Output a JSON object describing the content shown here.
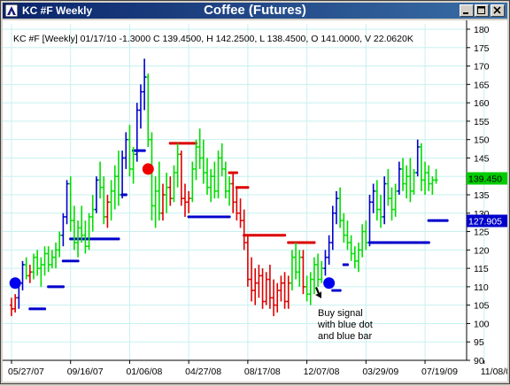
{
  "window": {
    "title": "KC #F Weekly",
    "chart_title": "Coffee (Futures)",
    "buttons": {
      "minimize": "_",
      "maximize": "□",
      "close": "×"
    }
  },
  "info_line": "KC #F [Weekly] 01/17/10  -1.3000 C 139.4500, H 142.2500, L 138.4500, O 141.0000, V 22.0620K",
  "annotation": [
    "Buy signal",
    "with blue dot",
    "and blue bar"
  ],
  "colors": {
    "up_bar": "#00dd00",
    "down_bar": "#dd0000",
    "signal_bar": "#0000cc",
    "grid": "#c8f0f0",
    "last_price_bg": "#00cc00",
    "stop_bg": "#0000cc"
  },
  "chart_data": {
    "type": "ohlc",
    "ylim": [
      90,
      180
    ],
    "y_ticks": [
      90,
      95,
      100,
      105,
      110,
      115,
      120,
      125,
      130,
      135,
      140,
      145,
      150,
      155,
      160,
      165,
      170,
      175,
      180
    ],
    "x_tick_labels": [
      "05/27/07",
      "09/16/07",
      "01/06/08",
      "04/27/08",
      "08/17/08",
      "12/07/08",
      "03/29/09",
      "07/19/09",
      "11/08/09"
    ],
    "x_tick_weeks": [
      0,
      16,
      32,
      48,
      64,
      80,
      96,
      112,
      128
    ],
    "last_price_label": "139.450",
    "last_price": 139.45,
    "stop_label": "127.905",
    "stop_price": 127.905,
    "bars": [
      {
        "w": 0,
        "o": 105,
        "h": 107,
        "l": 102,
        "c": 104,
        "col": "r"
      },
      {
        "w": 1,
        "o": 104,
        "h": 108,
        "l": 103,
        "c": 107,
        "col": "r"
      },
      {
        "w": 2,
        "o": 107,
        "h": 112,
        "l": 104,
        "c": 111,
        "col": "b"
      },
      {
        "w": 3,
        "o": 111,
        "h": 117,
        "l": 109,
        "c": 116,
        "col": "b"
      },
      {
        "w": 4,
        "o": 116,
        "h": 118,
        "l": 112,
        "c": 113,
        "col": "g"
      },
      {
        "w": 5,
        "o": 113,
        "h": 116,
        "l": 111,
        "c": 114,
        "col": "r"
      },
      {
        "w": 6,
        "o": 114,
        "h": 119,
        "l": 112,
        "c": 118,
        "col": "g"
      },
      {
        "w": 7,
        "o": 118,
        "h": 120,
        "l": 113,
        "c": 115,
        "col": "g"
      },
      {
        "w": 8,
        "o": 115,
        "h": 118,
        "l": 110,
        "c": 116,
        "col": "g"
      },
      {
        "w": 9,
        "o": 116,
        "h": 121,
        "l": 113,
        "c": 119,
        "col": "g"
      },
      {
        "w": 10,
        "o": 119,
        "h": 121,
        "l": 114,
        "c": 116,
        "col": "g"
      },
      {
        "w": 11,
        "o": 116,
        "h": 120,
        "l": 115,
        "c": 118,
        "col": "g"
      },
      {
        "w": 12,
        "o": 118,
        "h": 122,
        "l": 115,
        "c": 120,
        "col": "g"
      },
      {
        "w": 13,
        "o": 120,
        "h": 125,
        "l": 118,
        "c": 124,
        "col": "g"
      },
      {
        "w": 14,
        "o": 124,
        "h": 130,
        "l": 121,
        "c": 129,
        "col": "b"
      },
      {
        "w": 15,
        "o": 129,
        "h": 139,
        "l": 127,
        "c": 138,
        "col": "b"
      },
      {
        "w": 16,
        "o": 138,
        "h": 140,
        "l": 125,
        "c": 128,
        "col": "g"
      },
      {
        "w": 17,
        "o": 128,
        "h": 132,
        "l": 120,
        "c": 122,
        "col": "g"
      },
      {
        "w": 18,
        "o": 122,
        "h": 128,
        "l": 118,
        "c": 126,
        "col": "g"
      },
      {
        "w": 19,
        "o": 126,
        "h": 132,
        "l": 122,
        "c": 124,
        "col": "g"
      },
      {
        "w": 20,
        "o": 124,
        "h": 128,
        "l": 119,
        "c": 121,
        "col": "g"
      },
      {
        "w": 21,
        "o": 121,
        "h": 130,
        "l": 120,
        "c": 129,
        "col": "g"
      },
      {
        "w": 22,
        "o": 129,
        "h": 135,
        "l": 125,
        "c": 131,
        "col": "g"
      },
      {
        "w": 23,
        "o": 131,
        "h": 140,
        "l": 130,
        "c": 139,
        "col": "b"
      },
      {
        "w": 24,
        "o": 139,
        "h": 144,
        "l": 134,
        "c": 137,
        "col": "g"
      },
      {
        "w": 25,
        "o": 137,
        "h": 140,
        "l": 127,
        "c": 129,
        "col": "g"
      },
      {
        "w": 26,
        "o": 129,
        "h": 135,
        "l": 126,
        "c": 133,
        "col": "r"
      },
      {
        "w": 27,
        "o": 133,
        "h": 139,
        "l": 128,
        "c": 136,
        "col": "g"
      },
      {
        "w": 28,
        "o": 136,
        "h": 143,
        "l": 131,
        "c": 140,
        "col": "g"
      },
      {
        "w": 29,
        "o": 140,
        "h": 147,
        "l": 132,
        "c": 135,
        "col": "g"
      },
      {
        "w": 30,
        "o": 135,
        "h": 147,
        "l": 134,
        "c": 145,
        "col": "b"
      },
      {
        "w": 31,
        "o": 145,
        "h": 152,
        "l": 142,
        "c": 150,
        "col": "b"
      },
      {
        "w": 32,
        "o": 150,
        "h": 154,
        "l": 140,
        "c": 142,
        "col": "g"
      },
      {
        "w": 33,
        "o": 142,
        "h": 148,
        "l": 138,
        "c": 146,
        "col": "g"
      },
      {
        "w": 34,
        "o": 146,
        "h": 160,
        "l": 144,
        "c": 158,
        "col": "b"
      },
      {
        "w": 35,
        "o": 158,
        "h": 165,
        "l": 153,
        "c": 163,
        "col": "b"
      },
      {
        "w": 36,
        "o": 163,
        "h": 172,
        "l": 158,
        "c": 167,
        "col": "b"
      },
      {
        "w": 37,
        "o": 167,
        "h": 168,
        "l": 148,
        "c": 150,
        "col": "g"
      },
      {
        "w": 38,
        "o": 150,
        "h": 152,
        "l": 128,
        "c": 132,
        "col": "g"
      },
      {
        "w": 39,
        "o": 132,
        "h": 140,
        "l": 126,
        "c": 136,
        "col": "g"
      },
      {
        "w": 40,
        "o": 136,
        "h": 144,
        "l": 128,
        "c": 130,
        "col": "g"
      },
      {
        "w": 41,
        "o": 130,
        "h": 138,
        "l": 128,
        "c": 135,
        "col": "r"
      },
      {
        "w": 42,
        "o": 135,
        "h": 141,
        "l": 130,
        "c": 137,
        "col": "g"
      },
      {
        "w": 43,
        "o": 137,
        "h": 140,
        "l": 132,
        "c": 134,
        "col": "r"
      },
      {
        "w": 44,
        "o": 134,
        "h": 143,
        "l": 133,
        "c": 141,
        "col": "g"
      },
      {
        "w": 45,
        "o": 141,
        "h": 149,
        "l": 137,
        "c": 146,
        "col": "g"
      },
      {
        "w": 46,
        "o": 146,
        "h": 147,
        "l": 132,
        "c": 134,
        "col": "r"
      },
      {
        "w": 47,
        "o": 134,
        "h": 138,
        "l": 129,
        "c": 133,
        "col": "r"
      },
      {
        "w": 48,
        "o": 133,
        "h": 136,
        "l": 130,
        "c": 134,
        "col": "r"
      },
      {
        "w": 49,
        "o": 134,
        "h": 144,
        "l": 133,
        "c": 142,
        "col": "g"
      },
      {
        "w": 50,
        "o": 142,
        "h": 150,
        "l": 139,
        "c": 148,
        "col": "g"
      },
      {
        "w": 51,
        "o": 148,
        "h": 153,
        "l": 142,
        "c": 145,
        "col": "g"
      },
      {
        "w": 52,
        "o": 145,
        "h": 150,
        "l": 138,
        "c": 141,
        "col": "g"
      },
      {
        "w": 53,
        "o": 141,
        "h": 145,
        "l": 135,
        "c": 137,
        "col": "g"
      },
      {
        "w": 54,
        "o": 137,
        "h": 142,
        "l": 133,
        "c": 140,
        "col": "g"
      },
      {
        "w": 55,
        "o": 140,
        "h": 144,
        "l": 134,
        "c": 136,
        "col": "g"
      },
      {
        "w": 56,
        "o": 136,
        "h": 147,
        "l": 134,
        "c": 145,
        "col": "g"
      },
      {
        "w": 57,
        "o": 145,
        "h": 149,
        "l": 140,
        "c": 142,
        "col": "g"
      },
      {
        "w": 58,
        "o": 142,
        "h": 144,
        "l": 134,
        "c": 136,
        "col": "g"
      },
      {
        "w": 59,
        "o": 136,
        "h": 140,
        "l": 132,
        "c": 138,
        "col": "g"
      },
      {
        "w": 60,
        "o": 138,
        "h": 141,
        "l": 130,
        "c": 133,
        "col": "r"
      },
      {
        "w": 61,
        "o": 133,
        "h": 137,
        "l": 128,
        "c": 130,
        "col": "r"
      },
      {
        "w": 62,
        "o": 130,
        "h": 134,
        "l": 126,
        "c": 128,
        "col": "r"
      },
      {
        "w": 63,
        "o": 128,
        "h": 131,
        "l": 120,
        "c": 122,
        "col": "r"
      },
      {
        "w": 64,
        "o": 122,
        "h": 124,
        "l": 110,
        "c": 112,
        "col": "r"
      },
      {
        "w": 65,
        "o": 112,
        "h": 118,
        "l": 106,
        "c": 109,
        "col": "r"
      },
      {
        "w": 66,
        "o": 109,
        "h": 115,
        "l": 105,
        "c": 111,
        "col": "r"
      },
      {
        "w": 67,
        "o": 111,
        "h": 116,
        "l": 107,
        "c": 113,
        "col": "r"
      },
      {
        "w": 68,
        "o": 113,
        "h": 115,
        "l": 104,
        "c": 106,
        "col": "r"
      },
      {
        "w": 69,
        "o": 106,
        "h": 114,
        "l": 105,
        "c": 112,
        "col": "r"
      },
      {
        "w": 70,
        "o": 112,
        "h": 116,
        "l": 104,
        "c": 107,
        "col": "r"
      },
      {
        "w": 71,
        "o": 107,
        "h": 112,
        "l": 102,
        "c": 105,
        "col": "r"
      },
      {
        "w": 72,
        "o": 105,
        "h": 111,
        "l": 103,
        "c": 109,
        "col": "r"
      },
      {
        "w": 73,
        "o": 109,
        "h": 113,
        "l": 106,
        "c": 111,
        "col": "r"
      },
      {
        "w": 74,
        "o": 111,
        "h": 114,
        "l": 104,
        "c": 106,
        "col": "r"
      },
      {
        "w": 75,
        "o": 106,
        "h": 113,
        "l": 104,
        "c": 111,
        "col": "r"
      },
      {
        "w": 76,
        "o": 111,
        "h": 120,
        "l": 109,
        "c": 118,
        "col": "g"
      },
      {
        "w": 77,
        "o": 118,
        "h": 122,
        "l": 112,
        "c": 114,
        "col": "g"
      },
      {
        "w": 78,
        "o": 114,
        "h": 120,
        "l": 110,
        "c": 118,
        "col": "g"
      },
      {
        "w": 79,
        "o": 118,
        "h": 120,
        "l": 108,
        "c": 110,
        "col": "r"
      },
      {
        "w": 80,
        "o": 110,
        "h": 113,
        "l": 106,
        "c": 108,
        "col": "g"
      },
      {
        "w": 81,
        "o": 108,
        "h": 114,
        "l": 105,
        "c": 112,
        "col": "g"
      },
      {
        "w": 82,
        "o": 112,
        "h": 118,
        "l": 108,
        "c": 116,
        "col": "g"
      },
      {
        "w": 83,
        "o": 116,
        "h": 119,
        "l": 110,
        "c": 112,
        "col": "g"
      },
      {
        "w": 84,
        "o": 112,
        "h": 117,
        "l": 111,
        "c": 115,
        "col": "g"
      },
      {
        "w": 85,
        "o": 115,
        "h": 120,
        "l": 113,
        "c": 118,
        "col": "b"
      },
      {
        "w": 86,
        "o": 118,
        "h": 124,
        "l": 116,
        "c": 122,
        "col": "b"
      },
      {
        "w": 87,
        "o": 122,
        "h": 132,
        "l": 120,
        "c": 130,
        "col": "b"
      },
      {
        "w": 88,
        "o": 130,
        "h": 136,
        "l": 127,
        "c": 134,
        "col": "b"
      },
      {
        "w": 89,
        "o": 134,
        "h": 137,
        "l": 126,
        "c": 128,
        "col": "g"
      },
      {
        "w": 90,
        "o": 128,
        "h": 130,
        "l": 122,
        "c": 124,
        "col": "g"
      },
      {
        "w": 91,
        "o": 124,
        "h": 128,
        "l": 120,
        "c": 122,
        "col": "g"
      },
      {
        "w": 92,
        "o": 122,
        "h": 124,
        "l": 117,
        "c": 119,
        "col": "g"
      },
      {
        "w": 93,
        "o": 119,
        "h": 121,
        "l": 115,
        "c": 117,
        "col": "g"
      },
      {
        "w": 94,
        "o": 117,
        "h": 122,
        "l": 114,
        "c": 120,
        "col": "g"
      },
      {
        "w": 95,
        "o": 120,
        "h": 127,
        "l": 118,
        "c": 125,
        "col": "g"
      },
      {
        "w": 96,
        "o": 125,
        "h": 128,
        "l": 120,
        "c": 122,
        "col": "g"
      },
      {
        "w": 97,
        "o": 122,
        "h": 135,
        "l": 121,
        "c": 133,
        "col": "b"
      },
      {
        "w": 98,
        "o": 133,
        "h": 138,
        "l": 130,
        "c": 136,
        "col": "b"
      },
      {
        "w": 99,
        "o": 136,
        "h": 139,
        "l": 128,
        "c": 131,
        "col": "g"
      },
      {
        "w": 100,
        "o": 131,
        "h": 135,
        "l": 126,
        "c": 129,
        "col": "g"
      },
      {
        "w": 101,
        "o": 129,
        "h": 140,
        "l": 127,
        "c": 138,
        "col": "b"
      },
      {
        "w": 102,
        "o": 138,
        "h": 142,
        "l": 132,
        "c": 134,
        "col": "g"
      },
      {
        "w": 103,
        "o": 134,
        "h": 137,
        "l": 128,
        "c": 131,
        "col": "g"
      },
      {
        "w": 104,
        "o": 131,
        "h": 138,
        "l": 129,
        "c": 136,
        "col": "g"
      },
      {
        "w": 105,
        "o": 136,
        "h": 144,
        "l": 135,
        "c": 142,
        "col": "b"
      },
      {
        "w": 106,
        "o": 142,
        "h": 145,
        "l": 136,
        "c": 138,
        "col": "g"
      },
      {
        "w": 107,
        "o": 138,
        "h": 143,
        "l": 134,
        "c": 140,
        "col": "g"
      },
      {
        "w": 108,
        "o": 140,
        "h": 145,
        "l": 133,
        "c": 136,
        "col": "g"
      },
      {
        "w": 109,
        "o": 136,
        "h": 142,
        "l": 135,
        "c": 141,
        "col": "g"
      },
      {
        "w": 110,
        "o": 141,
        "h": 150,
        "l": 140,
        "c": 148,
        "col": "b"
      },
      {
        "w": 111,
        "o": 148,
        "h": 149,
        "l": 136,
        "c": 139,
        "col": "g"
      },
      {
        "w": 112,
        "o": 139,
        "h": 144,
        "l": 135,
        "c": 141,
        "col": "g"
      },
      {
        "w": 113,
        "o": 141,
        "h": 143,
        "l": 136,
        "c": 138,
        "col": "g"
      },
      {
        "w": 114,
        "o": 138,
        "h": 140,
        "l": 135,
        "c": 139,
        "col": "g"
      },
      {
        "w": 115,
        "o": 139,
        "h": 142,
        "l": 138,
        "c": 139,
        "col": "g"
      }
    ],
    "signal_dots": [
      {
        "w": 1,
        "y": 111,
        "col": "b"
      },
      {
        "w": 37,
        "y": 142,
        "col": "r"
      },
      {
        "w": 86,
        "y": 111,
        "col": "b"
      }
    ],
    "stop_lines": [
      {
        "w1": 5,
        "w2": 9,
        "y": 104,
        "col": "b"
      },
      {
        "w1": 10,
        "w2": 14,
        "y": 110,
        "col": "b"
      },
      {
        "w1": 14,
        "w2": 18,
        "y": 117,
        "col": "b"
      },
      {
        "w1": 16,
        "w2": 29,
        "y": 123,
        "col": "b"
      },
      {
        "w1": 30,
        "w2": 31,
        "y": 135,
        "col": "b"
      },
      {
        "w1": 33,
        "w2": 36,
        "y": 147,
        "col": "b"
      },
      {
        "w1": 43,
        "w2": 50,
        "y": 149,
        "col": "r"
      },
      {
        "w1": 48,
        "w2": 59,
        "y": 129,
        "col": "b"
      },
      {
        "w1": 59,
        "w2": 61,
        "y": 141,
        "col": "r"
      },
      {
        "w1": 61,
        "w2": 64,
        "y": 137,
        "col": "r"
      },
      {
        "w1": 63,
        "w2": 74,
        "y": 124,
        "col": "r"
      },
      {
        "w1": 75,
        "w2": 82,
        "y": 122,
        "col": "r"
      },
      {
        "w1": 87,
        "w2": 89,
        "y": 109,
        "col": "b"
      },
      {
        "w1": 90,
        "w2": 91,
        "y": 116,
        "col": "b"
      },
      {
        "w1": 97,
        "w2": 113,
        "y": 122,
        "col": "b"
      },
      {
        "w1": 113,
        "w2": 118,
        "y": 128,
        "col": "b"
      }
    ]
  }
}
